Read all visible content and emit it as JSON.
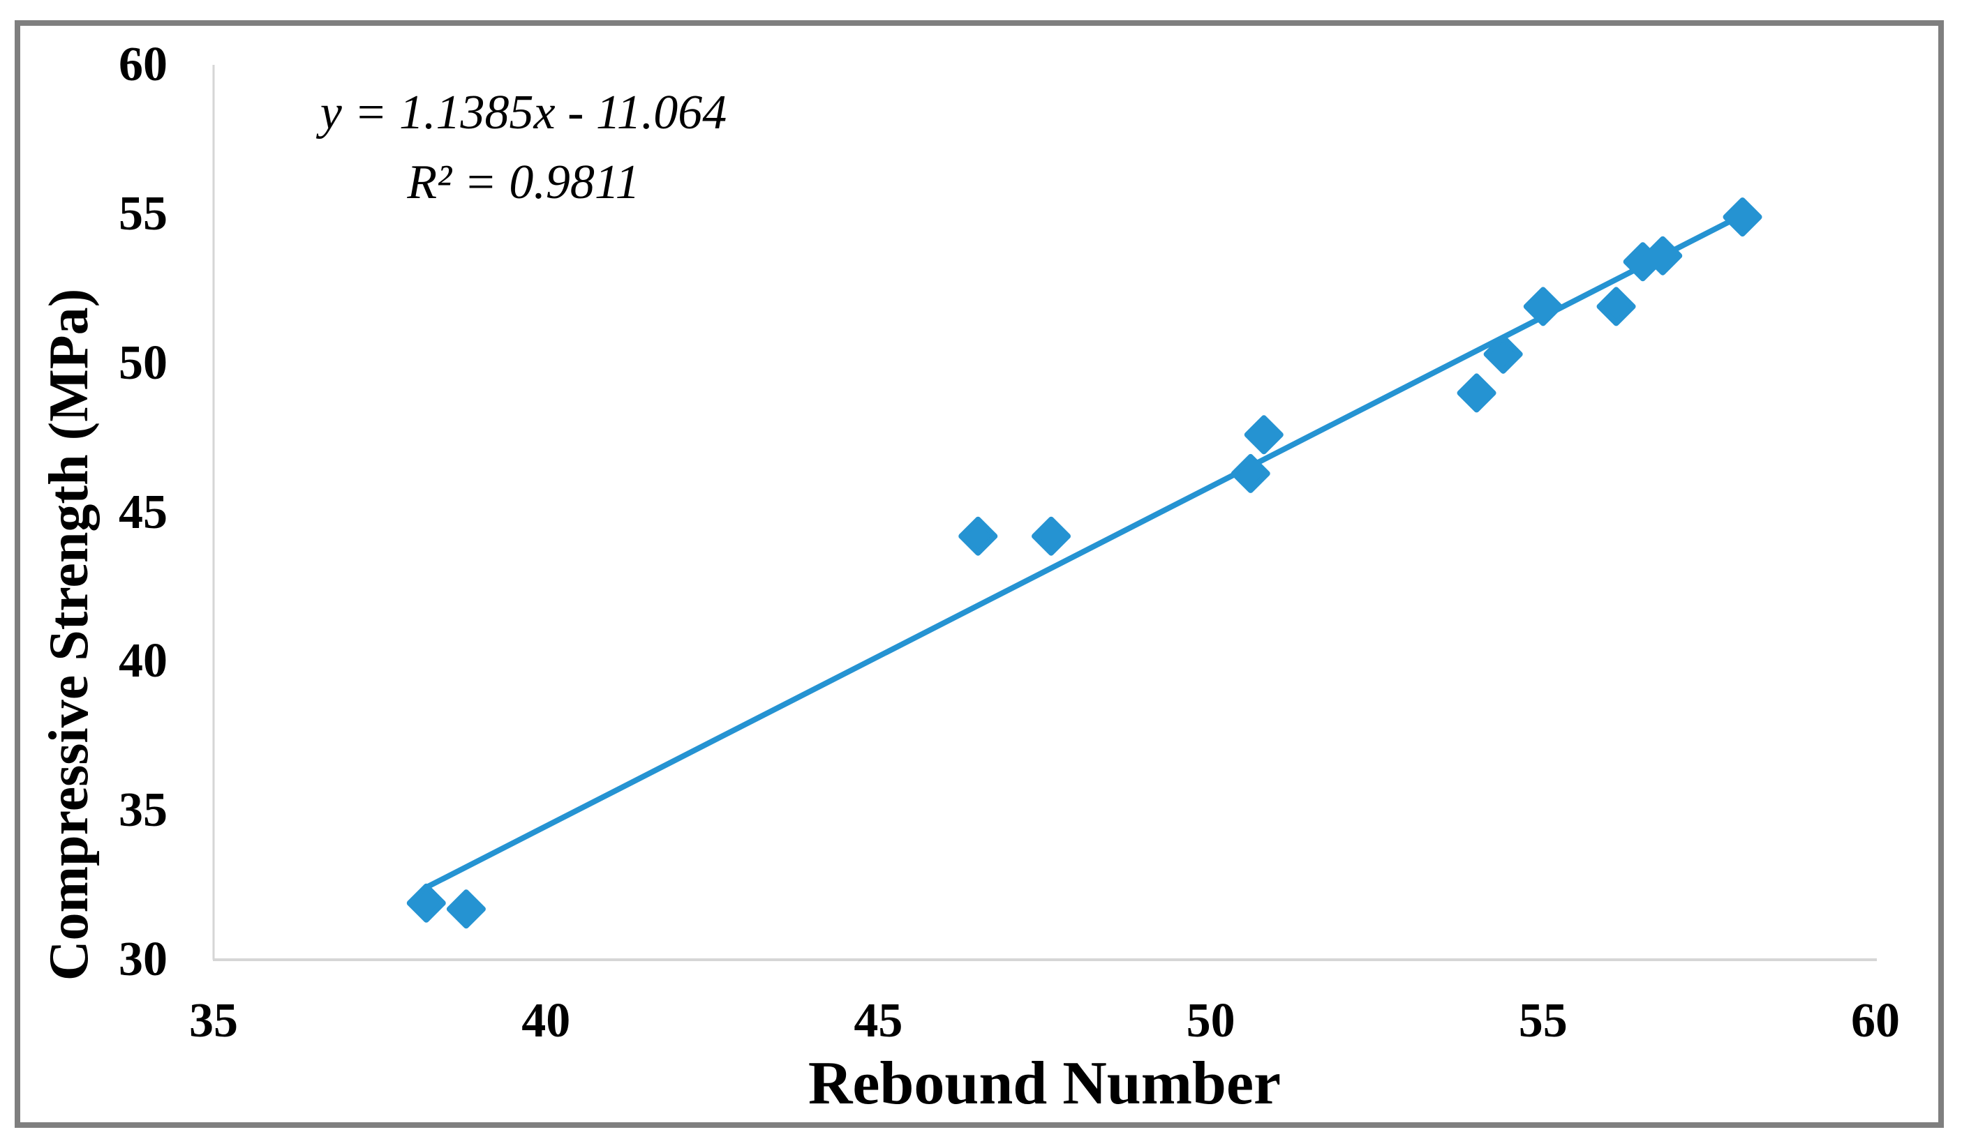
{
  "figure": {
    "background": "#ffffff",
    "border_color": "#7f7f7f"
  },
  "annotation": {
    "equation": "y = 1.1385x - 11.064",
    "r_squared": "R² = 0.9811"
  },
  "chart_data": {
    "type": "scatter",
    "title": "",
    "xlabel": "Rebound Number",
    "ylabel": "Compressive Strength (MPa)",
    "xlim": [
      35,
      60
    ],
    "ylim": [
      30,
      60
    ],
    "x_ticks": [
      35,
      40,
      45,
      50,
      55,
      60
    ],
    "y_ticks": [
      30,
      35,
      40,
      45,
      50,
      55,
      60
    ],
    "grid": false,
    "legend": "none",
    "marker": "diamond",
    "marker_color": "#2593d2",
    "trendline_color": "#2593d2",
    "axis_line_color": "#d6d6d6",
    "points": [
      [
        38.2,
        31.9
      ],
      [
        38.8,
        31.7
      ],
      [
        46.5,
        44.2
      ],
      [
        47.6,
        44.2
      ],
      [
        50.6,
        46.3
      ],
      [
        50.8,
        47.6
      ],
      [
        54.0,
        49.0
      ],
      [
        54.4,
        50.3
      ],
      [
        55.0,
        51.9
      ],
      [
        56.1,
        51.9
      ],
      [
        56.5,
        53.4
      ],
      [
        56.8,
        53.6
      ],
      [
        58.0,
        54.9
      ]
    ],
    "trendline": {
      "slope": 1.1385,
      "intercept": -11.064,
      "x_start": 38.2,
      "x_end": 58.0
    }
  }
}
